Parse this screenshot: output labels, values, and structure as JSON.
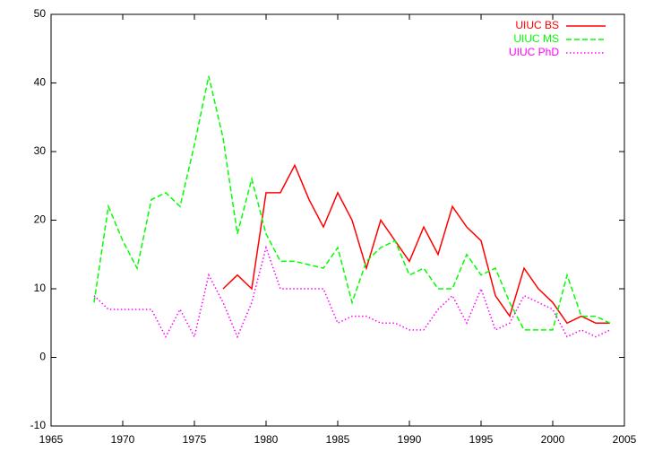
{
  "chart_data": {
    "type": "line",
    "x": [
      1968,
      1969,
      1970,
      1971,
      1972,
      1973,
      1974,
      1975,
      1976,
      1977,
      1978,
      1979,
      1980,
      1981,
      1982,
      1983,
      1984,
      1985,
      1986,
      1987,
      1988,
      1989,
      1990,
      1991,
      1992,
      1993,
      1994,
      1995,
      1996,
      1997,
      1998,
      1999,
      2000,
      2001,
      2002,
      2003,
      2004
    ],
    "series": [
      {
        "name": "UIUC BS",
        "color": "#ff0000",
        "style": "solid",
        "values": [
          null,
          null,
          null,
          null,
          null,
          null,
          null,
          null,
          null,
          10,
          12,
          10,
          24,
          24,
          28,
          23,
          19,
          24,
          20,
          13,
          20,
          17,
          14,
          19,
          15,
          22,
          19,
          17,
          9,
          6,
          13,
          10,
          8,
          5,
          6,
          5,
          5
        ]
      },
      {
        "name": "UIUC MS",
        "color": "#00ff00",
        "style": "dashed",
        "values": [
          8,
          22,
          17,
          13,
          23,
          24,
          22,
          31,
          41,
          32,
          18,
          26,
          18,
          14,
          14,
          13.5,
          13,
          16,
          8,
          14,
          16,
          17,
          12,
          13,
          10,
          10,
          15,
          12,
          13,
          8,
          4,
          4,
          4,
          12,
          6,
          6,
          5
        ]
      },
      {
        "name": "UIUC PhD",
        "color": "#ff00ff",
        "style": "dotted",
        "values": [
          9,
          7,
          7,
          7,
          7,
          3,
          7,
          3,
          12,
          8,
          3,
          8,
          16,
          10,
          10,
          10,
          10,
          5,
          6,
          6,
          5,
          5,
          4,
          4,
          7,
          9,
          5,
          10,
          4,
          5,
          9,
          8,
          7,
          3,
          4,
          3,
          4
        ]
      }
    ],
    "xlim": [
      1965,
      2005
    ],
    "xticks": [
      1965,
      1970,
      1975,
      1980,
      1985,
      1990,
      1995,
      2000,
      2005
    ],
    "ylim": [
      -10,
      50
    ],
    "yticks": [
      -10,
      0,
      10,
      20,
      30,
      40,
      50
    ],
    "legend": "top-right",
    "grid": false
  }
}
